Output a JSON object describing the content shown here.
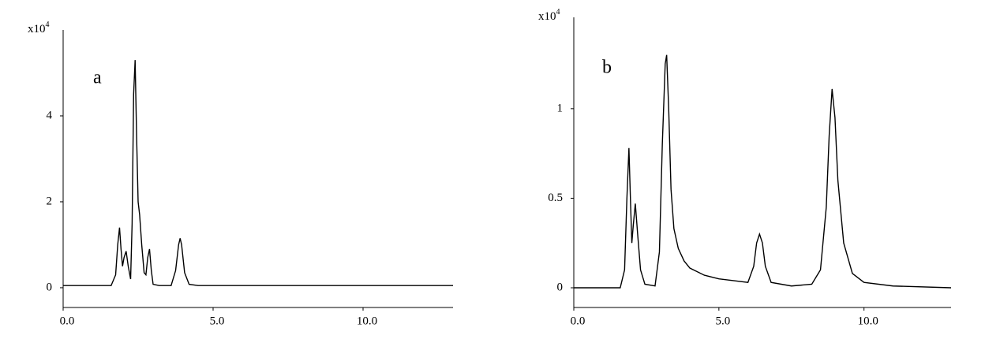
{
  "chart_data": [
    {
      "type": "line",
      "panel_label": "a",
      "y_unit": "x10",
      "y_unit_exponent": "4",
      "xlim": [
        0,
        13
      ],
      "ylim": [
        -0.46,
        6
      ],
      "xticks": [
        {
          "value": 0,
          "label": "0.0"
        },
        {
          "value": 5,
          "label": "5.0"
        },
        {
          "value": 10,
          "label": "10.0"
        }
      ],
      "yticks": [
        0,
        2,
        4
      ],
      "series": [
        {
          "color": "#000000",
          "x": [
            0,
            1.6,
            1.75,
            1.82,
            1.88,
            1.93,
            1.98,
            2.03,
            2.1,
            2.17,
            2.25,
            2.3,
            2.35,
            2.4,
            2.45,
            2.5,
            2.55,
            2.62,
            2.7,
            2.76,
            2.82,
            2.88,
            2.94,
            3.0,
            3.2,
            3.6,
            3.75,
            3.85,
            3.9,
            3.95,
            4.05,
            4.2,
            4.5,
            13
          ],
          "values": [
            0.05,
            0.05,
            0.3,
            1.0,
            1.4,
            0.9,
            0.5,
            0.7,
            0.85,
            0.5,
            0.2,
            1.5,
            4.5,
            5.3,
            3.5,
            2.0,
            1.7,
            1.0,
            0.35,
            0.3,
            0.7,
            0.9,
            0.4,
            0.08,
            0.05,
            0.05,
            0.4,
            1.0,
            1.15,
            1.0,
            0.35,
            0.08,
            0.05,
            0.05
          ]
        }
      ]
    },
    {
      "type": "line",
      "panel_label": "b",
      "y_unit": "x10",
      "y_unit_exponent": "4",
      "xlim": [
        0,
        13
      ],
      "ylim": [
        -0.11,
        1.51
      ],
      "xticks": [
        {
          "value": 0,
          "label": "0.0"
        },
        {
          "value": 5,
          "label": "5.0"
        },
        {
          "value": 10,
          "label": "10.0"
        }
      ],
      "yticks": [
        0,
        0.5,
        1
      ],
      "series": [
        {
          "color": "#000000",
          "x": [
            0,
            1.6,
            1.75,
            1.83,
            1.9,
            1.96,
            2.0,
            2.05,
            2.12,
            2.2,
            2.3,
            2.45,
            2.8,
            2.95,
            3.05,
            3.15,
            3.2,
            3.27,
            3.35,
            3.45,
            3.6,
            3.8,
            4.0,
            4.5,
            5.0,
            5.5,
            6.0,
            6.2,
            6.3,
            6.4,
            6.5,
            6.6,
            6.8,
            7.5,
            8.2,
            8.5,
            8.7,
            8.8,
            8.9,
            9.0,
            9.1,
            9.3,
            9.6,
            10.0,
            11,
            13
          ],
          "values": [
            0,
            0,
            0.1,
            0.5,
            0.78,
            0.45,
            0.25,
            0.35,
            0.47,
            0.3,
            0.1,
            0.02,
            0.01,
            0.2,
            0.8,
            1.25,
            1.3,
            1.0,
            0.55,
            0.33,
            0.22,
            0.15,
            0.11,
            0.07,
            0.05,
            0.04,
            0.03,
            0.12,
            0.25,
            0.3,
            0.25,
            0.12,
            0.03,
            0.01,
            0.02,
            0.1,
            0.45,
            0.85,
            1.11,
            0.95,
            0.6,
            0.25,
            0.08,
            0.03,
            0.01,
            0.0
          ]
        }
      ]
    }
  ]
}
